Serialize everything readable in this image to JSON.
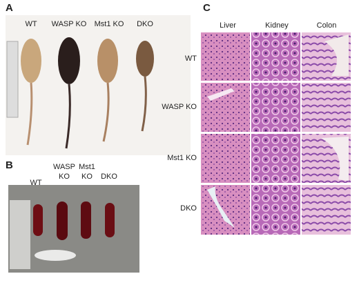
{
  "panels": {
    "A": {
      "label": "A",
      "columns": [
        "WT",
        "WASP KO",
        "Mst1 KO",
        "DKO"
      ]
    },
    "B": {
      "label": "B",
      "columns": [
        [
          "WT"
        ],
        [
          "WASP",
          "KO"
        ],
        [
          "Mst1",
          "KO"
        ],
        [
          "DKO"
        ]
      ]
    },
    "C": {
      "label": "C",
      "columns": [
        "Liver",
        "Kidney",
        "Colon"
      ],
      "rows": [
        "WT",
        "WASP KO",
        "Mst1 KO",
        "DKO"
      ]
    }
  }
}
